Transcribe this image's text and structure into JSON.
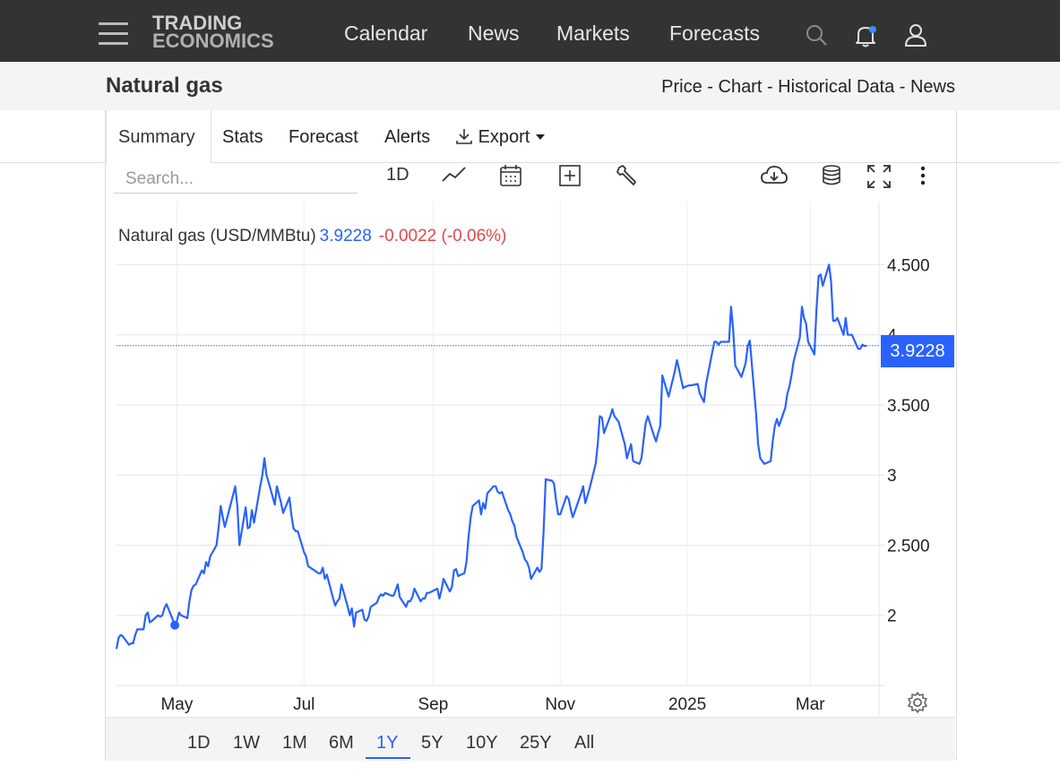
{
  "header": {
    "brand_line1": "TRADING",
    "brand_line2": "ECONOMICS",
    "nav": [
      "Calendar",
      "News",
      "Markets",
      "Forecasts"
    ],
    "icons": [
      "menu-icon",
      "search-icon",
      "bell-icon",
      "user-icon"
    ]
  },
  "page": {
    "title": "Natural gas",
    "subnav": "Price - Chart - Historical Data - News"
  },
  "tabs": [
    "Summary",
    "Stats",
    "Forecast",
    "Alerts",
    "Export"
  ],
  "search": {
    "placeholder": "Search..."
  },
  "toolbar": {
    "interval": "1D",
    "icons": [
      "line-chart-icon",
      "calendar-icon",
      "add-indicator-icon",
      "wrench-icon",
      "download-icon",
      "database-icon",
      "fullscreen-icon",
      "more-vertical-icon"
    ]
  },
  "legend": {
    "label": "Natural gas (USD/MMBtu)",
    "value": "3.9228",
    "change": "-0.0022 (-0.06%)"
  },
  "last_price_tag": "3.9228",
  "ranges": [
    "1D",
    "1W",
    "1M",
    "6M",
    "1Y",
    "5Y",
    "10Y",
    "25Y",
    "All"
  ],
  "active_range": "1Y",
  "colors": {
    "line": "#2962ff",
    "negative": "#e04848",
    "topbar": "#333333"
  },
  "chart_data": {
    "type": "line",
    "title": "",
    "xlabel": "",
    "ylabel": "",
    "y_tick_labels": [
      "2",
      "2.500",
      "3",
      "3.500",
      "4",
      "4.500"
    ],
    "y_ticks": [
      2.0,
      2.5,
      3.0,
      3.5,
      4.0,
      4.5
    ],
    "ylim": [
      1.5,
      4.95
    ],
    "x_tick_labels": [
      "May",
      "Jul",
      "Sep",
      "Nov",
      "2025",
      "Mar"
    ],
    "x_tick_dates": [
      "2024-05-01",
      "2024-07-01",
      "2024-09-01",
      "2024-11-01",
      "2025-01-01",
      "2025-03-01"
    ],
    "xlim": [
      "2024-04-02",
      "2025-04-03"
    ],
    "last_value": 3.9228,
    "grid": true,
    "series": [
      {
        "name": "Natural gas",
        "points": [
          [
            "2024-04-02",
            1.76
          ],
          [
            "2024-04-03",
            1.84
          ],
          [
            "2024-04-04",
            1.86
          ],
          [
            "2024-04-05",
            1.85
          ],
          [
            "2024-04-08",
            1.79
          ],
          [
            "2024-04-09",
            1.8
          ],
          [
            "2024-04-10",
            1.8
          ],
          [
            "2024-04-11",
            1.86
          ],
          [
            "2024-04-12",
            1.9
          ],
          [
            "2024-04-15",
            1.9
          ],
          [
            "2024-04-16",
            2.0
          ],
          [
            "2024-04-17",
            2.02
          ],
          [
            "2024-04-18",
            1.95
          ],
          [
            "2024-04-19",
            1.96
          ],
          [
            "2024-04-22",
            2.0
          ],
          [
            "2024-04-23",
            1.99
          ],
          [
            "2024-04-24",
            2.0
          ],
          [
            "2024-04-25",
            2.05
          ],
          [
            "2024-04-26",
            2.08
          ],
          [
            "2024-04-29",
            1.97
          ],
          [
            "2024-04-30",
            1.93
          ],
          [
            "2024-05-01",
            1.96
          ],
          [
            "2024-05-02",
            2.02
          ],
          [
            "2024-05-03",
            2.0
          ],
          [
            "2024-05-06",
            1.98
          ],
          [
            "2024-05-07",
            2.1
          ],
          [
            "2024-05-08",
            2.18
          ],
          [
            "2024-05-09",
            2.21
          ],
          [
            "2024-05-10",
            2.22
          ],
          [
            "2024-05-13",
            2.32
          ],
          [
            "2024-05-14",
            2.3
          ],
          [
            "2024-05-15",
            2.38
          ],
          [
            "2024-05-16",
            2.35
          ],
          [
            "2024-05-17",
            2.42
          ],
          [
            "2024-05-20",
            2.5
          ],
          [
            "2024-05-21",
            2.62
          ],
          [
            "2024-05-22",
            2.78
          ],
          [
            "2024-05-23",
            2.7
          ],
          [
            "2024-05-24",
            2.63
          ],
          [
            "2024-05-28",
            2.86
          ],
          [
            "2024-05-29",
            2.92
          ],
          [
            "2024-05-30",
            2.78
          ],
          [
            "2024-05-31",
            2.5
          ],
          [
            "2024-06-03",
            2.77
          ],
          [
            "2024-06-04",
            2.62
          ],
          [
            "2024-06-05",
            2.63
          ],
          [
            "2024-06-06",
            2.75
          ],
          [
            "2024-06-07",
            2.66
          ],
          [
            "2024-06-10",
            2.92
          ],
          [
            "2024-06-11",
            3.0
          ],
          [
            "2024-06-12",
            3.12
          ],
          [
            "2024-06-13",
            3.0
          ],
          [
            "2024-06-14",
            2.95
          ],
          [
            "2024-06-17",
            2.79
          ],
          [
            "2024-06-18",
            2.92
          ],
          [
            "2024-06-20",
            2.8
          ],
          [
            "2024-06-21",
            2.73
          ],
          [
            "2024-06-24",
            2.84
          ],
          [
            "2024-06-25",
            2.71
          ],
          [
            "2024-06-26",
            2.62
          ],
          [
            "2024-06-27",
            2.6
          ],
          [
            "2024-06-28",
            2.6
          ],
          [
            "2024-07-01",
            2.45
          ],
          [
            "2024-07-02",
            2.42
          ],
          [
            "2024-07-03",
            2.35
          ],
          [
            "2024-07-05",
            2.33
          ],
          [
            "2024-07-08",
            2.3
          ],
          [
            "2024-07-09",
            2.3
          ],
          [
            "2024-07-10",
            2.34
          ],
          [
            "2024-07-11",
            2.26
          ],
          [
            "2024-07-12",
            2.29
          ],
          [
            "2024-07-15",
            2.12
          ],
          [
            "2024-07-16",
            2.07
          ],
          [
            "2024-07-17",
            2.1
          ],
          [
            "2024-07-18",
            2.12
          ],
          [
            "2024-07-19",
            2.22
          ],
          [
            "2024-07-22",
            2.06
          ],
          [
            "2024-07-23",
            2.0
          ],
          [
            "2024-07-24",
            2.05
          ],
          [
            "2024-07-25",
            1.92
          ],
          [
            "2024-07-26",
            2.02
          ],
          [
            "2024-07-29",
            2.04
          ],
          [
            "2024-07-30",
            1.97
          ],
          [
            "2024-07-31",
            1.96
          ],
          [
            "2024-08-01",
            1.99
          ],
          [
            "2024-08-02",
            2.06
          ],
          [
            "2024-08-05",
            2.09
          ],
          [
            "2024-08-06",
            2.13
          ],
          [
            "2024-08-07",
            2.15
          ],
          [
            "2024-08-08",
            2.14
          ],
          [
            "2024-08-09",
            2.16
          ],
          [
            "2024-08-12",
            2.14
          ],
          [
            "2024-08-13",
            2.14
          ],
          [
            "2024-08-14",
            2.18
          ],
          [
            "2024-08-15",
            2.22
          ],
          [
            "2024-08-16",
            2.13
          ],
          [
            "2024-08-19",
            2.06
          ],
          [
            "2024-08-20",
            2.1
          ],
          [
            "2024-08-21",
            2.1
          ],
          [
            "2024-08-22",
            2.13
          ],
          [
            "2024-08-23",
            2.19
          ],
          [
            "2024-08-26",
            2.1
          ],
          [
            "2024-08-27",
            2.12
          ],
          [
            "2024-08-28",
            2.12
          ],
          [
            "2024-08-29",
            2.16
          ],
          [
            "2024-08-30",
            2.16
          ],
          [
            "2024-09-03",
            2.19
          ],
          [
            "2024-09-04",
            2.12
          ],
          [
            "2024-09-05",
            2.18
          ],
          [
            "2024-09-06",
            2.26
          ],
          [
            "2024-09-09",
            2.17
          ],
          [
            "2024-09-10",
            2.2
          ],
          [
            "2024-09-11",
            2.32
          ],
          [
            "2024-09-12",
            2.33
          ],
          [
            "2024-09-13",
            2.28
          ],
          [
            "2024-09-16",
            2.3
          ],
          [
            "2024-09-17",
            2.38
          ],
          [
            "2024-09-18",
            2.56
          ],
          [
            "2024-09-19",
            2.7
          ],
          [
            "2024-09-20",
            2.78
          ],
          [
            "2024-09-23",
            2.82
          ],
          [
            "2024-09-24",
            2.72
          ],
          [
            "2024-09-25",
            2.8
          ],
          [
            "2024-09-26",
            2.76
          ],
          [
            "2024-09-27",
            2.87
          ],
          [
            "2024-09-30",
            2.92
          ],
          [
            "2024-10-01",
            2.92
          ],
          [
            "2024-10-02",
            2.88
          ],
          [
            "2024-10-03",
            2.87
          ],
          [
            "2024-10-04",
            2.88
          ],
          [
            "2024-10-07",
            2.75
          ],
          [
            "2024-10-08",
            2.72
          ],
          [
            "2024-10-09",
            2.67
          ],
          [
            "2024-10-10",
            2.64
          ],
          [
            "2024-10-11",
            2.56
          ],
          [
            "2024-10-14",
            2.45
          ],
          [
            "2024-10-15",
            2.4
          ],
          [
            "2024-10-16",
            2.38
          ],
          [
            "2024-10-17",
            2.34
          ],
          [
            "2024-10-18",
            2.26
          ],
          [
            "2024-10-21",
            2.34
          ],
          [
            "2024-10-22",
            2.31
          ],
          [
            "2024-10-23",
            2.33
          ],
          [
            "2024-10-24",
            2.6
          ],
          [
            "2024-10-25",
            2.97
          ],
          [
            "2024-10-28",
            2.96
          ],
          [
            "2024-10-29",
            2.94
          ],
          [
            "2024-10-30",
            2.82
          ],
          [
            "2024-10-31",
            2.72
          ],
          [
            "2024-11-01",
            2.72
          ],
          [
            "2024-11-04",
            2.85
          ],
          [
            "2024-11-05",
            2.83
          ],
          [
            "2024-11-06",
            2.76
          ],
          [
            "2024-11-07",
            2.7
          ],
          [
            "2024-11-08",
            2.74
          ],
          [
            "2024-11-11",
            2.87
          ],
          [
            "2024-11-12",
            2.92
          ],
          [
            "2024-11-13",
            2.8
          ],
          [
            "2024-11-14",
            2.85
          ],
          [
            "2024-11-15",
            2.9
          ],
          [
            "2024-11-18",
            3.08
          ],
          [
            "2024-11-19",
            3.22
          ],
          [
            "2024-11-20",
            3.42
          ],
          [
            "2024-11-21",
            3.41
          ],
          [
            "2024-11-22",
            3.3
          ],
          [
            "2024-11-25",
            3.42
          ],
          [
            "2024-11-26",
            3.47
          ],
          [
            "2024-11-27",
            3.42
          ],
          [
            "2024-11-29",
            3.38
          ],
          [
            "2024-12-02",
            3.22
          ],
          [
            "2024-12-03",
            3.12
          ],
          [
            "2024-12-04",
            3.17
          ],
          [
            "2024-12-05",
            3.22
          ],
          [
            "2024-12-06",
            3.1
          ],
          [
            "2024-12-09",
            3.08
          ],
          [
            "2024-12-10",
            3.12
          ],
          [
            "2024-12-11",
            3.25
          ],
          [
            "2024-12-12",
            3.37
          ],
          [
            "2024-12-13",
            3.42
          ],
          [
            "2024-12-16",
            3.28
          ],
          [
            "2024-12-17",
            3.24
          ],
          [
            "2024-12-18",
            3.3
          ],
          [
            "2024-12-19",
            3.35
          ],
          [
            "2024-12-20",
            3.71
          ],
          [
            "2024-12-23",
            3.56
          ],
          [
            "2024-12-24",
            3.62
          ],
          [
            "2024-12-26",
            3.74
          ],
          [
            "2024-12-27",
            3.82
          ],
          [
            "2024-12-30",
            3.62
          ],
          [
            "2024-12-31",
            3.63
          ],
          [
            "2025-01-02",
            3.64
          ],
          [
            "2025-01-03",
            3.64
          ],
          [
            "2025-01-06",
            3.65
          ],
          [
            "2025-01-07",
            3.58
          ],
          [
            "2025-01-08",
            3.55
          ],
          [
            "2025-01-09",
            3.52
          ],
          [
            "2025-01-10",
            3.65
          ],
          [
            "2025-01-13",
            3.88
          ],
          [
            "2025-01-14",
            3.95
          ],
          [
            "2025-01-15",
            3.95
          ],
          [
            "2025-01-16",
            3.93
          ],
          [
            "2025-01-17",
            3.95
          ],
          [
            "2025-01-21",
            3.95
          ],
          [
            "2025-01-22",
            4.2
          ],
          [
            "2025-01-23",
            4.04
          ],
          [
            "2025-01-24",
            3.78
          ],
          [
            "2025-01-27",
            3.7
          ],
          [
            "2025-01-28",
            3.75
          ],
          [
            "2025-01-29",
            3.8
          ],
          [
            "2025-01-30",
            3.92
          ],
          [
            "2025-01-31",
            3.96
          ],
          [
            "2025-02-03",
            3.44
          ],
          [
            "2025-02-04",
            3.22
          ],
          [
            "2025-02-05",
            3.12
          ],
          [
            "2025-02-06",
            3.1
          ],
          [
            "2025-02-07",
            3.08
          ],
          [
            "2025-02-10",
            3.1
          ],
          [
            "2025-02-11",
            3.24
          ],
          [
            "2025-02-12",
            3.35
          ],
          [
            "2025-02-13",
            3.4
          ],
          [
            "2025-02-14",
            3.35
          ],
          [
            "2025-02-17",
            3.48
          ],
          [
            "2025-02-18",
            3.58
          ],
          [
            "2025-02-19",
            3.63
          ],
          [
            "2025-02-20",
            3.71
          ],
          [
            "2025-02-21",
            3.81
          ],
          [
            "2025-02-24",
            3.98
          ],
          [
            "2025-02-25",
            4.2
          ],
          [
            "2025-02-26",
            4.12
          ],
          [
            "2025-02-27",
            4.08
          ],
          [
            "2025-02-28",
            3.95
          ],
          [
            "2025-03-03",
            3.86
          ],
          [
            "2025-03-04",
            4.18
          ],
          [
            "2025-03-05",
            4.42
          ],
          [
            "2025-03-06",
            4.43
          ],
          [
            "2025-03-07",
            4.35
          ],
          [
            "2025-03-10",
            4.5
          ],
          [
            "2025-03-11",
            4.38
          ],
          [
            "2025-03-12",
            4.1
          ],
          [
            "2025-03-13",
            4.1
          ],
          [
            "2025-03-14",
            4.12
          ],
          [
            "2025-03-17",
            4.0
          ],
          [
            "2025-03-18",
            4.12
          ],
          [
            "2025-03-19",
            4.0
          ],
          [
            "2025-03-20",
            4.0
          ],
          [
            "2025-03-21",
            4.0
          ],
          [
            "2025-03-24",
            3.9
          ],
          [
            "2025-03-25",
            3.9
          ],
          [
            "2025-03-26",
            3.93
          ],
          [
            "2025-03-27",
            3.92
          ],
          [
            "2025-03-28",
            3.9228
          ]
        ],
        "marker_point": [
          "2024-04-30",
          1.93
        ]
      }
    ]
  }
}
